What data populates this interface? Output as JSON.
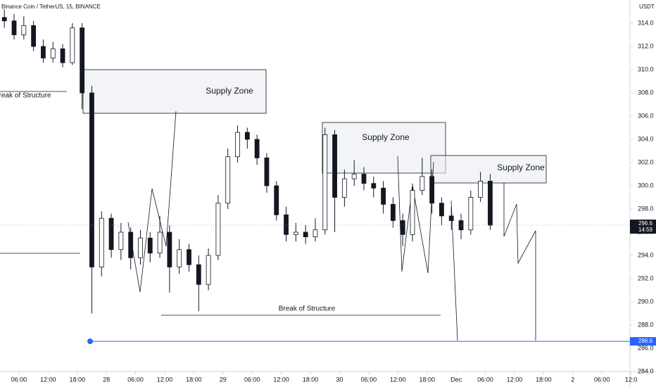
{
  "chart_data": {
    "type": "candlestick",
    "header": "Binance Coin / TetherUS, 15, BINANCE",
    "currency": "USDT",
    "up_color": "#ffffff",
    "down_color": "#131722",
    "x": [
      3,
      5,
      7,
      9,
      11,
      13,
      15,
      17,
      19,
      21,
      23,
      25,
      27,
      29,
      31,
      33,
      35,
      37,
      39,
      41,
      43,
      45,
      47,
      49,
      51,
      53,
      55,
      57,
      59,
      61,
      63,
      65,
      67,
      69,
      71,
      73,
      75,
      77,
      79,
      81,
      83,
      85,
      87,
      89,
      91,
      93,
      95,
      97,
      99,
      101,
      103
    ],
    "open": [
      314.5,
      314.2,
      313.0,
      313.8,
      312.0,
      311.0,
      311.8,
      310.6,
      313.6,
      308.0,
      293.0,
      297.2,
      294.5,
      296.0,
      293.8,
      295.5,
      294.2,
      296.0,
      293.0,
      294.5,
      293.2,
      291.5,
      294.0,
      298.5,
      302.5,
      304.6,
      304.0,
      302.4,
      300.0,
      297.5,
      295.8,
      296.0,
      295.6,
      296.2,
      304.4,
      299.0,
      300.6,
      301.0,
      300.2,
      299.8,
      298.4,
      297.0,
      295.8,
      299.6,
      300.8,
      298.5,
      297.4,
      297.0,
      296.2,
      299.0,
      300.4
    ],
    "high": [
      315.2,
      314.8,
      314.6,
      314.2,
      312.6,
      312.4,
      312.2,
      314.0,
      314.0,
      308.6,
      297.8,
      297.6,
      296.8,
      296.4,
      296.2,
      296.0,
      297.4,
      296.6,
      295.4,
      295.0,
      294.0,
      294.6,
      299.2,
      303.2,
      305.2,
      305.0,
      304.4,
      302.8,
      300.4,
      298.2,
      296.8,
      296.6,
      297.2,
      305.0,
      304.8,
      301.4,
      302.2,
      301.6,
      300.8,
      300.4,
      299.0,
      297.6,
      300.2,
      302.4,
      301.4,
      299.0,
      298.2,
      297.6,
      299.6,
      301.2,
      301.0
    ],
    "low": [
      313.6,
      312.6,
      312.6,
      311.6,
      310.6,
      310.6,
      310.2,
      310.4,
      306.6,
      289.0,
      292.2,
      293.8,
      293.6,
      292.8,
      293.2,
      293.4,
      293.8,
      290.8,
      292.4,
      292.6,
      289.2,
      291.0,
      293.6,
      298.0,
      302.0,
      303.2,
      301.8,
      299.4,
      297.0,
      295.2,
      295.2,
      295.0,
      295.2,
      295.8,
      296.0,
      298.2,
      300.0,
      299.6,
      299.0,
      297.6,
      296.4,
      294.8,
      295.2,
      299.2,
      297.6,
      296.6,
      296.2,
      295.4,
      295.8,
      298.6,
      296.2
    ],
    "close": [
      314.2,
      313.0,
      313.8,
      312.0,
      311.0,
      311.8,
      310.6,
      313.6,
      308.0,
      293.0,
      297.2,
      294.5,
      296.0,
      293.8,
      295.5,
      294.2,
      296.0,
      293.0,
      294.5,
      293.2,
      291.5,
      294.0,
      298.5,
      302.5,
      304.6,
      304.0,
      302.4,
      300.0,
      297.5,
      295.8,
      296.0,
      295.6,
      296.2,
      304.4,
      299.0,
      300.6,
      301.0,
      300.2,
      299.8,
      298.4,
      297.0,
      295.8,
      299.6,
      300.8,
      298.5,
      297.4,
      297.0,
      296.2,
      299.0,
      300.4,
      296.6
    ],
    "xlim": [
      2.1,
      132.2
    ],
    "ylim": [
      284,
      316
    ],
    "yticks": [
      {
        "value": 284,
        "label": "284.0"
      },
      {
        "value": 286,
        "label": "286.0"
      },
      {
        "value": 288,
        "label": "288.0"
      },
      {
        "value": 290,
        "label": "290.0"
      },
      {
        "value": 292,
        "label": "292.0"
      },
      {
        "value": 294,
        "label": "294.0"
      },
      {
        "value": 296,
        "label": "296.0"
      },
      {
        "value": 298,
        "label": "298.0"
      },
      {
        "value": 300,
        "label": "300.0"
      },
      {
        "value": 302,
        "label": "302.0"
      },
      {
        "value": 304,
        "label": "304.0"
      },
      {
        "value": 306,
        "label": "306.0"
      },
      {
        "value": 308,
        "label": "308.0"
      },
      {
        "value": 310,
        "label": "310.0"
      },
      {
        "value": 312,
        "label": "312.0"
      },
      {
        "value": 314,
        "label": "314.0"
      }
    ],
    "xticks": [
      {
        "value": 6,
        "label": "06:00"
      },
      {
        "value": 12,
        "label": "12:00"
      },
      {
        "value": 18,
        "label": "18:00"
      },
      {
        "value": 24,
        "label": "28"
      },
      {
        "value": 30,
        "label": "06:00"
      },
      {
        "value": 36,
        "label": "12:00"
      },
      {
        "value": 42,
        "label": "18:00"
      },
      {
        "value": 48,
        "label": "29"
      },
      {
        "value": 54,
        "label": "06:00"
      },
      {
        "value": 60,
        "label": "12:00"
      },
      {
        "value": 66,
        "label": "18:00"
      },
      {
        "value": 72,
        "label": "30"
      },
      {
        "value": 78,
        "label": "06:00"
      },
      {
        "value": 84,
        "label": "12:00"
      },
      {
        "value": 90,
        "label": "18:00"
      },
      {
        "value": 96,
        "label": "Dec"
      },
      {
        "value": 102,
        "label": "06:00"
      },
      {
        "value": 108,
        "label": "12:00"
      },
      {
        "value": 114,
        "label": "18:00"
      },
      {
        "value": 120,
        "label": "2"
      },
      {
        "value": 126,
        "label": "06:00"
      },
      {
        "value": 132,
        "label": "12:0"
      }
    ],
    "grid": false,
    "last_price": 296.6,
    "countdown": "14:59",
    "level": 286.6,
    "annotations": {
      "supply_zone_1": "Supply Zone",
      "supply_zone_2": "Supply Zone",
      "supply_zone_3": "Supply Zone",
      "bos_1": "Break of Structure",
      "bos_2": "Break of Structure"
    }
  }
}
